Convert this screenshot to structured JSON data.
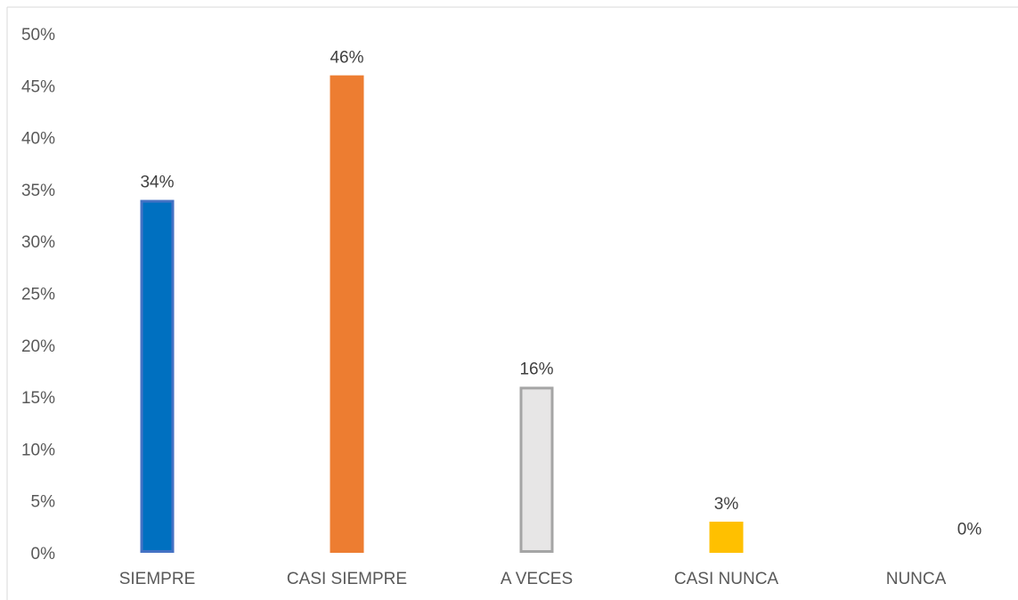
{
  "chart_data": {
    "type": "bar",
    "categories": [
      "SIEMPRE",
      "CASI SIEMPRE",
      "A VECES",
      "CASI NUNCA",
      "NUNCA"
    ],
    "values": [
      0.34,
      0.46,
      0.16,
      0.03,
      0.0
    ],
    "data_labels": [
      "34%",
      "46%",
      "16%",
      "3%",
      "0%"
    ],
    "bar_colors": [
      {
        "fill": "#0070C0",
        "stroke": "#4472C4"
      },
      {
        "fill": "#ED7D31",
        "stroke": "#ED7D31"
      },
      {
        "fill": "#E7E6E6",
        "stroke": "#A5A5A5"
      },
      {
        "fill": "#FFC000",
        "stroke": "#FFC000"
      },
      {
        "fill": "#5B9BD5",
        "stroke": "#5B9BD5"
      }
    ],
    "y_ticks": [
      "0%",
      "5%",
      "10%",
      "15%",
      "20%",
      "25%",
      "30%",
      "35%",
      "40%",
      "45%",
      "50%"
    ],
    "ylim": [
      0,
      0.5
    ],
    "grid": false,
    "legend": "none"
  }
}
